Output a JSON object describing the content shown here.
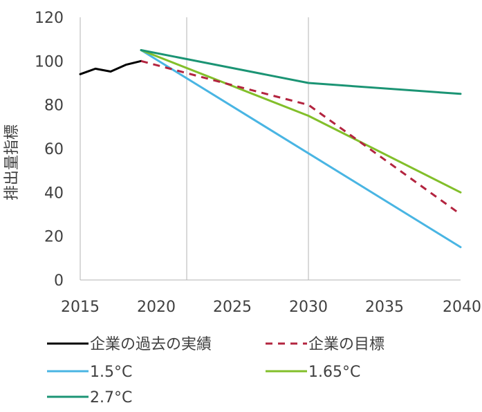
{
  "chart_data": {
    "type": "line",
    "title": "",
    "xlabel": "",
    "ylabel": "排出量指標",
    "xlim": [
      2015,
      2040
    ],
    "ylim": [
      0,
      120
    ],
    "x_ticks": [
      "2015",
      "2020",
      "2025",
      "2030",
      "2035",
      "2040"
    ],
    "y_ticks": [
      "0",
      "20",
      "40",
      "60",
      "80",
      "100",
      "120"
    ],
    "vertical_reference_lines": [
      2022,
      2030
    ],
    "legend_placement": "bottom",
    "series": [
      {
        "name": "企業の過去の実績",
        "color": "#000000",
        "dash": "solid",
        "points": [
          [
            2015,
            94
          ],
          [
            2016,
            96.5
          ],
          [
            2017,
            95.2
          ],
          [
            2018,
            98.3
          ],
          [
            2019,
            100
          ]
        ]
      },
      {
        "name": "企業の目標",
        "color": "#b3243f",
        "dash": "dashed",
        "points": [
          [
            2019,
            100
          ],
          [
            2025,
            89
          ],
          [
            2030,
            80
          ],
          [
            2035,
            55
          ],
          [
            2040,
            30
          ]
        ]
      },
      {
        "name": "1.5°C",
        "color": "#49b5e3",
        "dash": "solid",
        "points": [
          [
            2019,
            105
          ],
          [
            2040,
            15
          ]
        ]
      },
      {
        "name": "1.65°C",
        "color": "#82bf2a",
        "dash": "solid",
        "points": [
          [
            2019,
            105
          ],
          [
            2030,
            75
          ],
          [
            2040,
            40
          ]
        ]
      },
      {
        "name": "2.7°C",
        "color": "#1b9474",
        "dash": "solid",
        "points": [
          [
            2019,
            105
          ],
          [
            2030,
            90
          ],
          [
            2040,
            85
          ]
        ]
      }
    ]
  }
}
